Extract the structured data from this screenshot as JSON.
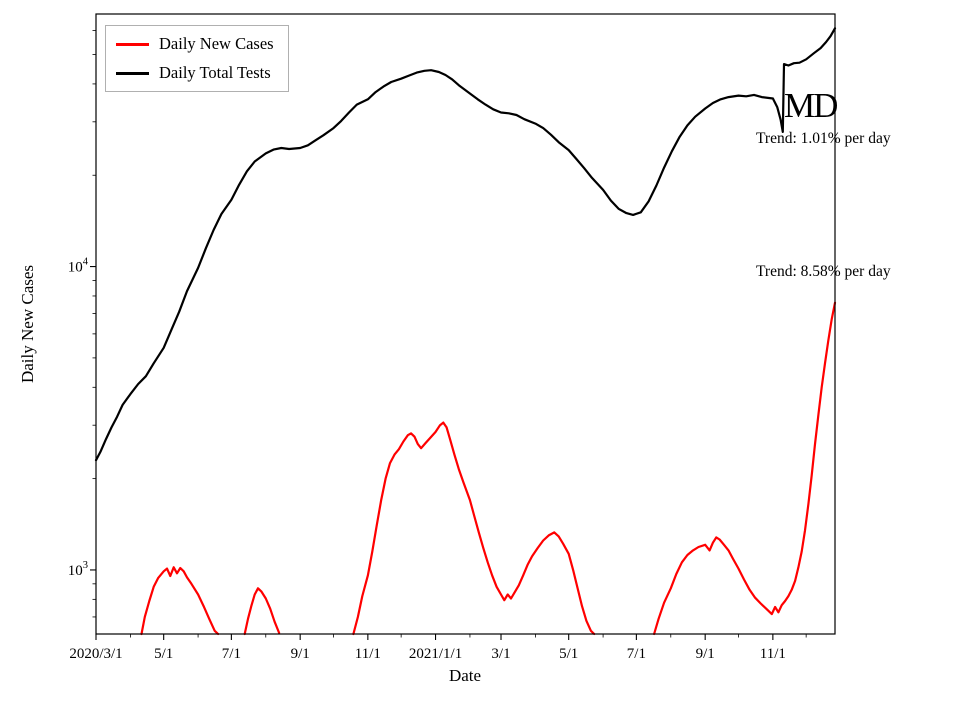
{
  "chart_data": {
    "type": "line",
    "title": "",
    "xlabel": "Date",
    "ylabel": "Daily New Cases",
    "grid": false,
    "legend_position": "upper-left",
    "x_axis": {
      "min": "2020-03-01",
      "max": "2021-12-27",
      "major_ticks": [
        {
          "date": "2020-03-01",
          "label": "2020/3/1"
        },
        {
          "date": "2020-05-01",
          "label": "5/1"
        },
        {
          "date": "2020-07-01",
          "label": "7/1"
        },
        {
          "date": "2020-09-01",
          "label": "9/1"
        },
        {
          "date": "2020-11-01",
          "label": "11/1"
        },
        {
          "date": "2021-01-01",
          "label": "2021/1/1"
        },
        {
          "date": "2021-03-01",
          "label": "3/1"
        },
        {
          "date": "2021-05-01",
          "label": "5/1"
        },
        {
          "date": "2021-07-01",
          "label": "7/1"
        },
        {
          "date": "2021-09-01",
          "label": "9/1"
        },
        {
          "date": "2021-11-01",
          "label": "11/1"
        }
      ]
    },
    "y_axis": {
      "scale": "log",
      "min": 615,
      "max": 68000,
      "major_ticks": [
        {
          "value": 1000,
          "base": "10",
          "exp": "3"
        },
        {
          "value": 10000,
          "base": "10",
          "exp": "4"
        }
      ]
    },
    "annotations": [
      {
        "text": "Trend: 1.01% per day"
      },
      {
        "text": "Trend: 8.58% per day"
      },
      {
        "text": "MD"
      }
    ],
    "series": [
      {
        "name": "Daily New Cases",
        "color": "#ff0000",
        "points": [
          [
            "2020-04-11",
            615
          ],
          [
            "2020-04-14",
            700
          ],
          [
            "2020-04-18",
            790
          ],
          [
            "2020-04-22",
            880
          ],
          [
            "2020-04-26",
            940
          ],
          [
            "2020-05-01",
            990
          ],
          [
            "2020-05-04",
            1010
          ],
          [
            "2020-05-07",
            955
          ],
          [
            "2020-05-10",
            1020
          ],
          [
            "2020-05-13",
            975
          ],
          [
            "2020-05-16",
            1015
          ],
          [
            "2020-05-19",
            990
          ],
          [
            "2020-05-22",
            945
          ],
          [
            "2020-05-26",
            900
          ],
          [
            "2020-06-01",
            830
          ],
          [
            "2020-06-06",
            760
          ],
          [
            "2020-06-11",
            690
          ],
          [
            "2020-06-16",
            630
          ],
          [
            "2020-06-19",
            615
          ],
          [
            "2020-06-20",
            null
          ],
          [
            "2020-07-13",
            615
          ],
          [
            "2020-07-16",
            690
          ],
          [
            "2020-07-19",
            760
          ],
          [
            "2020-07-22",
            830
          ],
          [
            "2020-07-25",
            870
          ],
          [
            "2020-07-28",
            850
          ],
          [
            "2020-08-01",
            805
          ],
          [
            "2020-08-05",
            745
          ],
          [
            "2020-08-09",
            675
          ],
          [
            "2020-08-13",
            620
          ],
          [
            "2020-08-14",
            null
          ],
          [
            "2020-10-19",
            615
          ],
          [
            "2020-10-23",
            700
          ],
          [
            "2020-10-27",
            820
          ],
          [
            "2020-11-01",
            960
          ],
          [
            "2020-11-05",
            1150
          ],
          [
            "2020-11-09",
            1400
          ],
          [
            "2020-11-13",
            1700
          ],
          [
            "2020-11-17",
            2000
          ],
          [
            "2020-11-21",
            2250
          ],
          [
            "2020-11-25",
            2400
          ],
          [
            "2020-11-29",
            2500
          ],
          [
            "2020-12-03",
            2650
          ],
          [
            "2020-12-07",
            2780
          ],
          [
            "2020-12-10",
            2820
          ],
          [
            "2020-12-13",
            2750
          ],
          [
            "2020-12-16",
            2600
          ],
          [
            "2020-12-19",
            2520
          ],
          [
            "2020-12-23",
            2620
          ],
          [
            "2020-12-27",
            2720
          ],
          [
            "2021-01-01",
            2850
          ],
          [
            "2021-01-05",
            3000
          ],
          [
            "2021-01-08",
            3060
          ],
          [
            "2021-01-11",
            2950
          ],
          [
            "2021-01-14",
            2700
          ],
          [
            "2021-01-18",
            2400
          ],
          [
            "2021-01-22",
            2150
          ],
          [
            "2021-01-26",
            1950
          ],
          [
            "2021-02-01",
            1700
          ],
          [
            "2021-02-05",
            1500
          ],
          [
            "2021-02-09",
            1330
          ],
          [
            "2021-02-13",
            1180
          ],
          [
            "2021-02-17",
            1060
          ],
          [
            "2021-02-21",
            960
          ],
          [
            "2021-02-25",
            880
          ],
          [
            "2021-03-01",
            830
          ],
          [
            "2021-03-04",
            795
          ],
          [
            "2021-03-07",
            830
          ],
          [
            "2021-03-10",
            805
          ],
          [
            "2021-03-13",
            840
          ],
          [
            "2021-03-17",
            890
          ],
          [
            "2021-03-21",
            960
          ],
          [
            "2021-03-25",
            1040
          ],
          [
            "2021-03-29",
            1110
          ],
          [
            "2021-04-03",
            1180
          ],
          [
            "2021-04-08",
            1250
          ],
          [
            "2021-04-13",
            1300
          ],
          [
            "2021-04-18",
            1330
          ],
          [
            "2021-04-22",
            1290
          ],
          [
            "2021-04-26",
            1220
          ],
          [
            "2021-05-01",
            1130
          ],
          [
            "2021-05-05",
            1000
          ],
          [
            "2021-05-09",
            870
          ],
          [
            "2021-05-13",
            760
          ],
          [
            "2021-05-17",
            680
          ],
          [
            "2021-05-21",
            630
          ],
          [
            "2021-05-24",
            615
          ],
          [
            "2021-05-25",
            null
          ],
          [
            "2021-07-17",
            615
          ],
          [
            "2021-07-21",
            690
          ],
          [
            "2021-07-26",
            780
          ],
          [
            "2021-08-01",
            870
          ],
          [
            "2021-08-06",
            970
          ],
          [
            "2021-08-11",
            1060
          ],
          [
            "2021-08-16",
            1120
          ],
          [
            "2021-08-21",
            1160
          ],
          [
            "2021-08-26",
            1190
          ],
          [
            "2021-09-01",
            1210
          ],
          [
            "2021-09-05",
            1160
          ],
          [
            "2021-09-08",
            1230
          ],
          [
            "2021-09-11",
            1280
          ],
          [
            "2021-09-14",
            1260
          ],
          [
            "2021-09-18",
            1210
          ],
          [
            "2021-09-22",
            1160
          ],
          [
            "2021-09-26",
            1090
          ],
          [
            "2021-10-01",
            1010
          ],
          [
            "2021-10-06",
            930
          ],
          [
            "2021-10-11",
            860
          ],
          [
            "2021-10-16",
            810
          ],
          [
            "2021-10-21",
            775
          ],
          [
            "2021-10-26",
            745
          ],
          [
            "2021-10-31",
            715
          ],
          [
            "2021-11-03",
            755
          ],
          [
            "2021-11-06",
            725
          ],
          [
            "2021-11-09",
            765
          ],
          [
            "2021-11-12",
            790
          ],
          [
            "2021-11-15",
            820
          ],
          [
            "2021-11-18",
            860
          ],
          [
            "2021-11-21",
            920
          ],
          [
            "2021-11-24",
            1020
          ],
          [
            "2021-11-27",
            1150
          ],
          [
            "2021-11-30",
            1350
          ],
          [
            "2021-12-03",
            1650
          ],
          [
            "2021-12-06",
            2050
          ],
          [
            "2021-12-09",
            2600
          ],
          [
            "2021-12-12",
            3250
          ],
          [
            "2021-12-15",
            4000
          ],
          [
            "2021-12-18",
            4800
          ],
          [
            "2021-12-21",
            5700
          ],
          [
            "2021-12-24",
            6700
          ],
          [
            "2021-12-27",
            7600
          ]
        ]
      },
      {
        "name": "Daily Total Tests",
        "color": "#000000",
        "points": [
          [
            "2020-03-01",
            2300
          ],
          [
            "2020-03-05",
            2450
          ],
          [
            "2020-03-10",
            2700
          ],
          [
            "2020-03-15",
            2950
          ],
          [
            "2020-03-20",
            3200
          ],
          [
            "2020-03-25",
            3500
          ],
          [
            "2020-04-01",
            3800
          ],
          [
            "2020-04-08",
            4100
          ],
          [
            "2020-04-15",
            4350
          ],
          [
            "2020-04-22",
            4800
          ],
          [
            "2020-05-01",
            5400
          ],
          [
            "2020-05-08",
            6200
          ],
          [
            "2020-05-15",
            7100
          ],
          [
            "2020-05-22",
            8300
          ],
          [
            "2020-06-01",
            9900
          ],
          [
            "2020-06-08",
            11500
          ],
          [
            "2020-06-15",
            13200
          ],
          [
            "2020-06-22",
            14900
          ],
          [
            "2020-07-01",
            16600
          ],
          [
            "2020-07-08",
            18600
          ],
          [
            "2020-07-15",
            20600
          ],
          [
            "2020-07-22",
            22200
          ],
          [
            "2020-08-01",
            23600
          ],
          [
            "2020-08-08",
            24300
          ],
          [
            "2020-08-15",
            24600
          ],
          [
            "2020-08-22",
            24400
          ],
          [
            "2020-09-01",
            24600
          ],
          [
            "2020-09-08",
            25100
          ],
          [
            "2020-09-15",
            26100
          ],
          [
            "2020-09-22",
            27100
          ],
          [
            "2020-10-01",
            28600
          ],
          [
            "2020-10-08",
            30200
          ],
          [
            "2020-10-15",
            32200
          ],
          [
            "2020-10-22",
            34200
          ],
          [
            "2020-11-01",
            35600
          ],
          [
            "2020-11-08",
            37600
          ],
          [
            "2020-11-15",
            39200
          ],
          [
            "2020-11-22",
            40600
          ],
          [
            "2020-12-01",
            41600
          ],
          [
            "2020-12-08",
            42600
          ],
          [
            "2020-12-15",
            43600
          ],
          [
            "2020-12-22",
            44200
          ],
          [
            "2020-12-28",
            44400
          ],
          [
            "2021-01-04",
            43800
          ],
          [
            "2021-01-10",
            42800
          ],
          [
            "2021-01-16",
            41400
          ],
          [
            "2021-01-22",
            39600
          ],
          [
            "2021-02-01",
            37200
          ],
          [
            "2021-02-08",
            35600
          ],
          [
            "2021-02-15",
            34200
          ],
          [
            "2021-02-22",
            33000
          ],
          [
            "2021-03-01",
            32200
          ],
          [
            "2021-03-08",
            32000
          ],
          [
            "2021-03-15",
            31600
          ],
          [
            "2021-03-22",
            30600
          ],
          [
            "2021-04-01",
            29600
          ],
          [
            "2021-04-08",
            28600
          ],
          [
            "2021-04-15",
            27200
          ],
          [
            "2021-04-22",
            25700
          ],
          [
            "2021-05-01",
            24200
          ],
          [
            "2021-05-08",
            22600
          ],
          [
            "2021-05-15",
            21100
          ],
          [
            "2021-05-22",
            19600
          ],
          [
            "2021-06-01",
            17900
          ],
          [
            "2021-06-08",
            16500
          ],
          [
            "2021-06-15",
            15500
          ],
          [
            "2021-06-22",
            15000
          ],
          [
            "2021-06-28",
            14800
          ],
          [
            "2021-07-05",
            15100
          ],
          [
            "2021-07-12",
            16400
          ],
          [
            "2021-07-19",
            18500
          ],
          [
            "2021-07-26",
            21200
          ],
          [
            "2021-08-02",
            24000
          ],
          [
            "2021-08-09",
            26800
          ],
          [
            "2021-08-16",
            29200
          ],
          [
            "2021-08-23",
            31200
          ],
          [
            "2021-09-01",
            33200
          ],
          [
            "2021-09-08",
            34600
          ],
          [
            "2021-09-15",
            35600
          ],
          [
            "2021-09-22",
            36200
          ],
          [
            "2021-10-01",
            36600
          ],
          [
            "2021-10-08",
            36400
          ],
          [
            "2021-10-15",
            36800
          ],
          [
            "2021-10-22",
            36200
          ],
          [
            "2021-11-01",
            35800
          ],
          [
            "2021-11-05",
            33500
          ],
          [
            "2021-11-08",
            30500
          ],
          [
            "2021-11-10",
            27800
          ],
          [
            "2021-11-11",
            46500
          ],
          [
            "2021-11-15",
            46000
          ],
          [
            "2021-11-20",
            46800
          ],
          [
            "2021-11-25",
            47000
          ],
          [
            "2021-12-01",
            48200
          ],
          [
            "2021-12-08",
            50500
          ],
          [
            "2021-12-14",
            52500
          ],
          [
            "2021-12-19",
            55000
          ],
          [
            "2021-12-23",
            57500
          ],
          [
            "2021-12-27",
            61000
          ]
        ]
      }
    ]
  }
}
